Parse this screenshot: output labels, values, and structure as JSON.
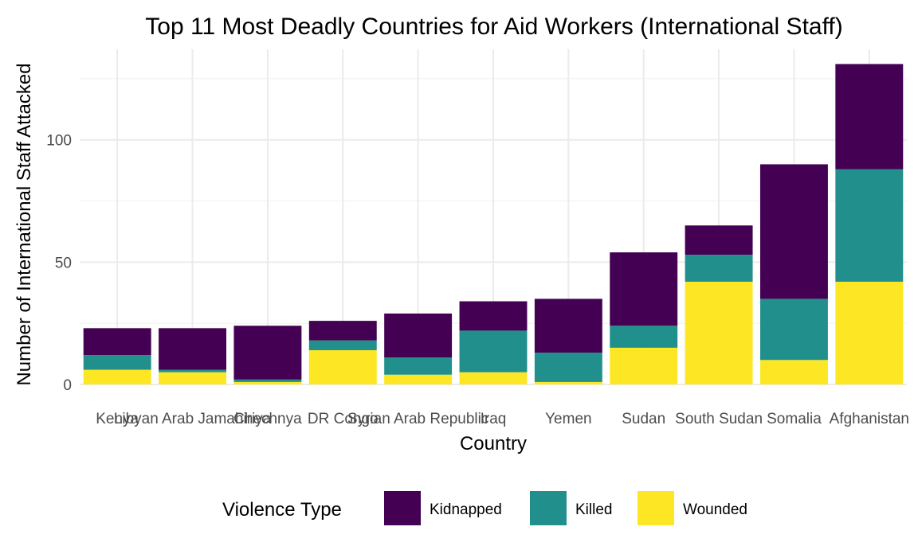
{
  "chart_data": {
    "type": "bar",
    "stacked": true,
    "title": "Top 11 Most Deadly Countries for Aid Workers (International Staff)",
    "xlabel": "Country",
    "ylabel": "Number of International Staff Attacked",
    "categories": [
      "Kenya",
      "Libyan Arab Jamahiriya",
      "Chechnya",
      "DR Congo",
      "Syrian Arab Republic",
      "Iraq",
      "Yemen",
      "Sudan",
      "South Sudan",
      "Somalia",
      "Afghanistan"
    ],
    "series": [
      {
        "name": "Wounded",
        "color": "#FDE725",
        "values": [
          6,
          5,
          1,
          14,
          4,
          5,
          1,
          15,
          42,
          10,
          42
        ]
      },
      {
        "name": "Killed",
        "color": "#21908C",
        "values": [
          6,
          1,
          1,
          4,
          7,
          17,
          12,
          9,
          11,
          25,
          46
        ]
      },
      {
        "name": "Kidnapped",
        "color": "#440154",
        "values": [
          11,
          17,
          22,
          8,
          18,
          12,
          22,
          30,
          12,
          55,
          43
        ]
      }
    ],
    "ylim": [
      0,
      137
    ],
    "yticks": [
      0,
      50,
      100
    ],
    "grid": true,
    "legend": {
      "title": "Violence Type",
      "position": "bottom",
      "entries": [
        "Kidnapped",
        "Killed",
        "Wounded"
      ]
    }
  }
}
